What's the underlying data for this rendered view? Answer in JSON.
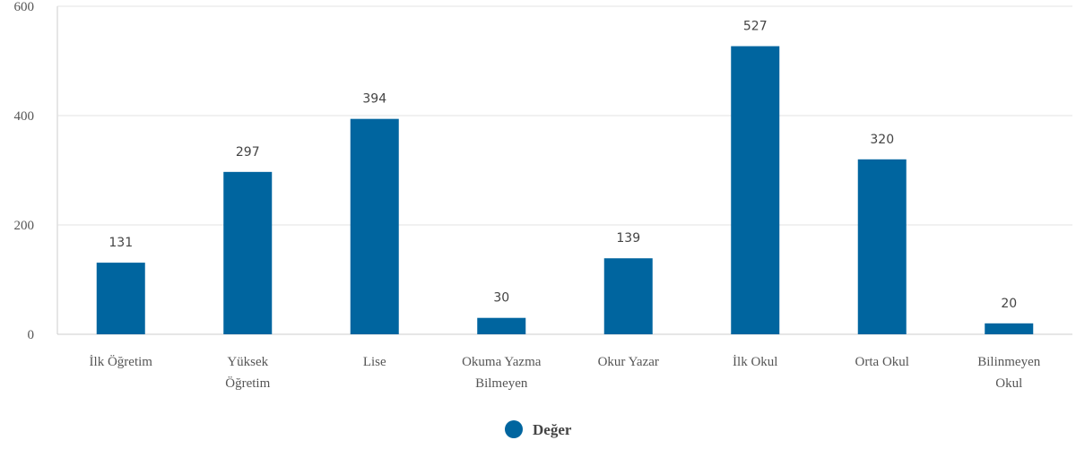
{
  "chart_data": {
    "type": "bar",
    "categories": [
      "İlk Öğretim",
      "Yüksek Öğretim",
      "Lise",
      "Okuma Yazma Bilmeyen",
      "Okur Yazar",
      "İlk Okul",
      "Orta Okul",
      "Bilinmeyen Okul"
    ],
    "category_lines": [
      [
        "İlk Öğretim"
      ],
      [
        "Yüksek",
        "Öğretim"
      ],
      [
        "Lise"
      ],
      [
        "Okuma Yazma",
        "Bilmeyen"
      ],
      [
        "Okur Yazar"
      ],
      [
        "İlk Okul"
      ],
      [
        "Orta Okul"
      ],
      [
        "Bilinmeyen",
        "Okul"
      ]
    ],
    "series": [
      {
        "name": "Değer",
        "values": [
          131,
          297,
          394,
          30,
          139,
          527,
          320,
          20
        ],
        "color": "#00659f"
      }
    ],
    "data_labels": [
      "131",
      "297",
      "394",
      "30",
      "139",
      "527",
      "320",
      "20"
    ],
    "yticks": [
      0,
      200,
      400,
      600
    ],
    "ytick_labels": [
      "0",
      "200",
      "400",
      "600"
    ],
    "ylim": [
      0,
      600
    ],
    "grid": true,
    "legend_position": "bottom-center"
  },
  "colors": {
    "bar": "#00659f",
    "grid": "#e3e3e3",
    "axis": "#cccccc"
  }
}
